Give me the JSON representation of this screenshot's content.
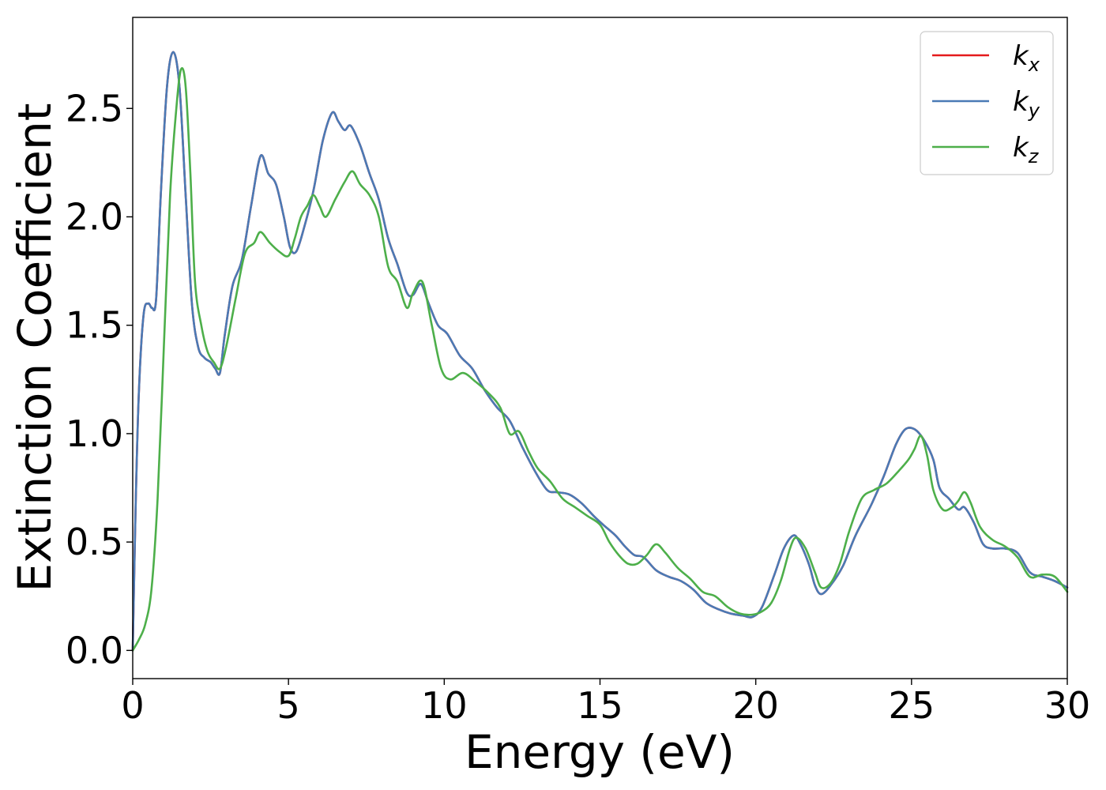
{
  "chart_data": {
    "type": "line",
    "title": "",
    "xlabel": "Energy (eV)",
    "ylabel": "Extinction Coefficient",
    "xlim": [
      0,
      30
    ],
    "ylim": [
      -0.13,
      2.92
    ],
    "xticks": [
      0,
      5,
      10,
      15,
      20,
      25,
      30
    ],
    "xtick_labels": [
      "0",
      "5",
      "10",
      "15",
      "20",
      "25",
      "30"
    ],
    "yticks": [
      0.0,
      0.5,
      1.0,
      1.5,
      2.0,
      2.5
    ],
    "ytick_labels": [
      "0.0",
      "0.5",
      "1.0",
      "1.5",
      "2.0",
      "2.5"
    ],
    "grid": false,
    "legend_position": "top-right",
    "series": [
      {
        "name": "k_x",
        "label_main": "k",
        "label_sub": "x",
        "color": "#e41a1c",
        "x": [
          0,
          0.1,
          0.2,
          0.35,
          0.5,
          0.62,
          0.75,
          0.9,
          1.1,
          1.3,
          1.5,
          1.7,
          1.9,
          2.1,
          2.3,
          2.5,
          2.65,
          2.8,
          2.95,
          3.2,
          3.5,
          3.8,
          4.1,
          4.35,
          4.6,
          4.85,
          5.05,
          5.25,
          5.5,
          5.8,
          6.1,
          6.4,
          6.6,
          6.8,
          7.0,
          7.3,
          7.6,
          7.9,
          8.2,
          8.5,
          8.8,
          9.0,
          9.25,
          9.5,
          9.8,
          10.1,
          10.5,
          10.9,
          11.3,
          11.7,
          12.1,
          12.5,
          12.9,
          13.3,
          13.6,
          14.0,
          14.4,
          14.8,
          15.1,
          15.5,
          15.8,
          16.1,
          16.4,
          16.8,
          17.2,
          17.6,
          18.0,
          18.4,
          18.8,
          19.2,
          19.6,
          19.9,
          20.2,
          20.6,
          20.9,
          21.2,
          21.4,
          21.7,
          21.9,
          22.1,
          22.4,
          22.8,
          23.2,
          23.7,
          24.1,
          24.5,
          24.8,
          25.1,
          25.4,
          25.7,
          25.9,
          26.2,
          26.5,
          26.7,
          27.0,
          27.3,
          27.6,
          28.0,
          28.4,
          28.8,
          29.2,
          29.6,
          30.0
        ],
        "y": [
          0.0,
          0.7,
          1.2,
          1.55,
          1.6,
          1.58,
          1.62,
          2.1,
          2.6,
          2.76,
          2.6,
          2.1,
          1.6,
          1.4,
          1.35,
          1.33,
          1.3,
          1.28,
          1.45,
          1.68,
          1.8,
          2.05,
          2.28,
          2.2,
          2.15,
          2.0,
          1.86,
          1.84,
          1.95,
          2.12,
          2.35,
          2.48,
          2.44,
          2.4,
          2.42,
          2.33,
          2.2,
          2.08,
          1.9,
          1.78,
          1.65,
          1.64,
          1.69,
          1.6,
          1.5,
          1.46,
          1.36,
          1.3,
          1.2,
          1.12,
          1.06,
          0.94,
          0.83,
          0.74,
          0.73,
          0.72,
          0.68,
          0.62,
          0.58,
          0.53,
          0.48,
          0.44,
          0.43,
          0.37,
          0.34,
          0.32,
          0.28,
          0.22,
          0.19,
          0.17,
          0.16,
          0.155,
          0.2,
          0.35,
          0.47,
          0.53,
          0.5,
          0.4,
          0.3,
          0.26,
          0.3,
          0.39,
          0.53,
          0.67,
          0.8,
          0.95,
          1.02,
          1.02,
          0.97,
          0.88,
          0.75,
          0.7,
          0.65,
          0.66,
          0.59,
          0.49,
          0.47,
          0.47,
          0.45,
          0.36,
          0.34,
          0.32,
          0.29
        ]
      },
      {
        "name": "k_y",
        "label_main": "k",
        "label_sub": "y",
        "color": "#4a7ab5",
        "x": [
          0,
          0.1,
          0.2,
          0.35,
          0.5,
          0.62,
          0.75,
          0.9,
          1.1,
          1.3,
          1.5,
          1.7,
          1.9,
          2.1,
          2.3,
          2.5,
          2.65,
          2.8,
          2.95,
          3.2,
          3.5,
          3.8,
          4.1,
          4.35,
          4.6,
          4.85,
          5.05,
          5.25,
          5.5,
          5.8,
          6.1,
          6.4,
          6.6,
          6.8,
          7.0,
          7.3,
          7.6,
          7.9,
          8.2,
          8.5,
          8.8,
          9.0,
          9.25,
          9.5,
          9.8,
          10.1,
          10.5,
          10.9,
          11.3,
          11.7,
          12.1,
          12.5,
          12.9,
          13.3,
          13.6,
          14.0,
          14.4,
          14.8,
          15.1,
          15.5,
          15.8,
          16.1,
          16.4,
          16.8,
          17.2,
          17.6,
          18.0,
          18.4,
          18.8,
          19.2,
          19.6,
          19.9,
          20.2,
          20.6,
          20.9,
          21.2,
          21.4,
          21.7,
          21.9,
          22.1,
          22.4,
          22.8,
          23.2,
          23.7,
          24.1,
          24.5,
          24.8,
          25.1,
          25.4,
          25.7,
          25.9,
          26.2,
          26.5,
          26.7,
          27.0,
          27.3,
          27.6,
          28.0,
          28.4,
          28.8,
          29.2,
          29.6,
          30.0
        ],
        "y": [
          0.0,
          0.7,
          1.2,
          1.55,
          1.6,
          1.58,
          1.62,
          2.1,
          2.6,
          2.76,
          2.6,
          2.1,
          1.6,
          1.4,
          1.35,
          1.33,
          1.3,
          1.28,
          1.45,
          1.68,
          1.8,
          2.05,
          2.28,
          2.2,
          2.15,
          2.0,
          1.86,
          1.84,
          1.95,
          2.12,
          2.35,
          2.48,
          2.44,
          2.4,
          2.42,
          2.33,
          2.2,
          2.08,
          1.9,
          1.78,
          1.65,
          1.64,
          1.69,
          1.6,
          1.5,
          1.46,
          1.36,
          1.3,
          1.2,
          1.12,
          1.06,
          0.94,
          0.83,
          0.74,
          0.73,
          0.72,
          0.68,
          0.62,
          0.58,
          0.53,
          0.48,
          0.44,
          0.43,
          0.37,
          0.34,
          0.32,
          0.28,
          0.22,
          0.19,
          0.17,
          0.16,
          0.155,
          0.2,
          0.35,
          0.47,
          0.53,
          0.5,
          0.4,
          0.3,
          0.26,
          0.3,
          0.39,
          0.53,
          0.67,
          0.8,
          0.95,
          1.02,
          1.02,
          0.97,
          0.88,
          0.75,
          0.7,
          0.65,
          0.66,
          0.59,
          0.49,
          0.47,
          0.47,
          0.45,
          0.36,
          0.34,
          0.32,
          0.29
        ]
      },
      {
        "name": "k_z",
        "label_main": "k",
        "label_sub": "z",
        "color": "#4daf4a",
        "x": [
          0,
          0.2,
          0.4,
          0.6,
          0.8,
          1.0,
          1.2,
          1.4,
          1.55,
          1.7,
          1.85,
          2.0,
          2.2,
          2.4,
          2.6,
          2.8,
          3.0,
          3.3,
          3.6,
          3.9,
          4.1,
          4.4,
          4.7,
          5.0,
          5.2,
          5.4,
          5.6,
          5.8,
          6.0,
          6.2,
          6.5,
          6.8,
          7.05,
          7.3,
          7.6,
          7.9,
          8.2,
          8.5,
          8.8,
          9.0,
          9.3,
          9.6,
          9.9,
          10.2,
          10.6,
          11.0,
          11.4,
          11.8,
          12.1,
          12.4,
          12.7,
          13.0,
          13.4,
          13.8,
          14.2,
          14.6,
          15.0,
          15.3,
          15.6,
          15.9,
          16.2,
          16.5,
          16.8,
          17.1,
          17.5,
          17.9,
          18.3,
          18.7,
          19.1,
          19.5,
          19.9,
          20.2,
          20.5,
          20.8,
          21.1,
          21.3,
          21.6,
          21.9,
          22.1,
          22.4,
          22.7,
          23.0,
          23.4,
          23.8,
          24.2,
          24.6,
          24.9,
          25.1,
          25.3,
          25.5,
          25.7,
          26.0,
          26.3,
          26.5,
          26.7,
          26.9,
          27.2,
          27.6,
          28.0,
          28.4,
          28.8,
          29.2,
          29.6,
          30.0
        ],
        "y": [
          0.0,
          0.05,
          0.12,
          0.28,
          0.7,
          1.4,
          2.1,
          2.5,
          2.68,
          2.6,
          2.2,
          1.7,
          1.5,
          1.38,
          1.33,
          1.3,
          1.4,
          1.62,
          1.83,
          1.88,
          1.93,
          1.88,
          1.84,
          1.82,
          1.9,
          2.0,
          2.05,
          2.1,
          2.05,
          2.0,
          2.08,
          2.16,
          2.21,
          2.15,
          2.1,
          2.0,
          1.77,
          1.7,
          1.58,
          1.65,
          1.7,
          1.5,
          1.3,
          1.25,
          1.28,
          1.24,
          1.19,
          1.12,
          1.0,
          1.01,
          0.92,
          0.84,
          0.78,
          0.7,
          0.66,
          0.62,
          0.58,
          0.5,
          0.44,
          0.4,
          0.4,
          0.44,
          0.49,
          0.45,
          0.38,
          0.33,
          0.27,
          0.25,
          0.2,
          0.17,
          0.165,
          0.18,
          0.22,
          0.32,
          0.47,
          0.52,
          0.47,
          0.36,
          0.29,
          0.31,
          0.4,
          0.55,
          0.7,
          0.74,
          0.77,
          0.83,
          0.88,
          0.93,
          0.99,
          0.9,
          0.74,
          0.65,
          0.66,
          0.69,
          0.73,
          0.68,
          0.57,
          0.51,
          0.48,
          0.43,
          0.34,
          0.35,
          0.34,
          0.27
        ]
      }
    ]
  }
}
